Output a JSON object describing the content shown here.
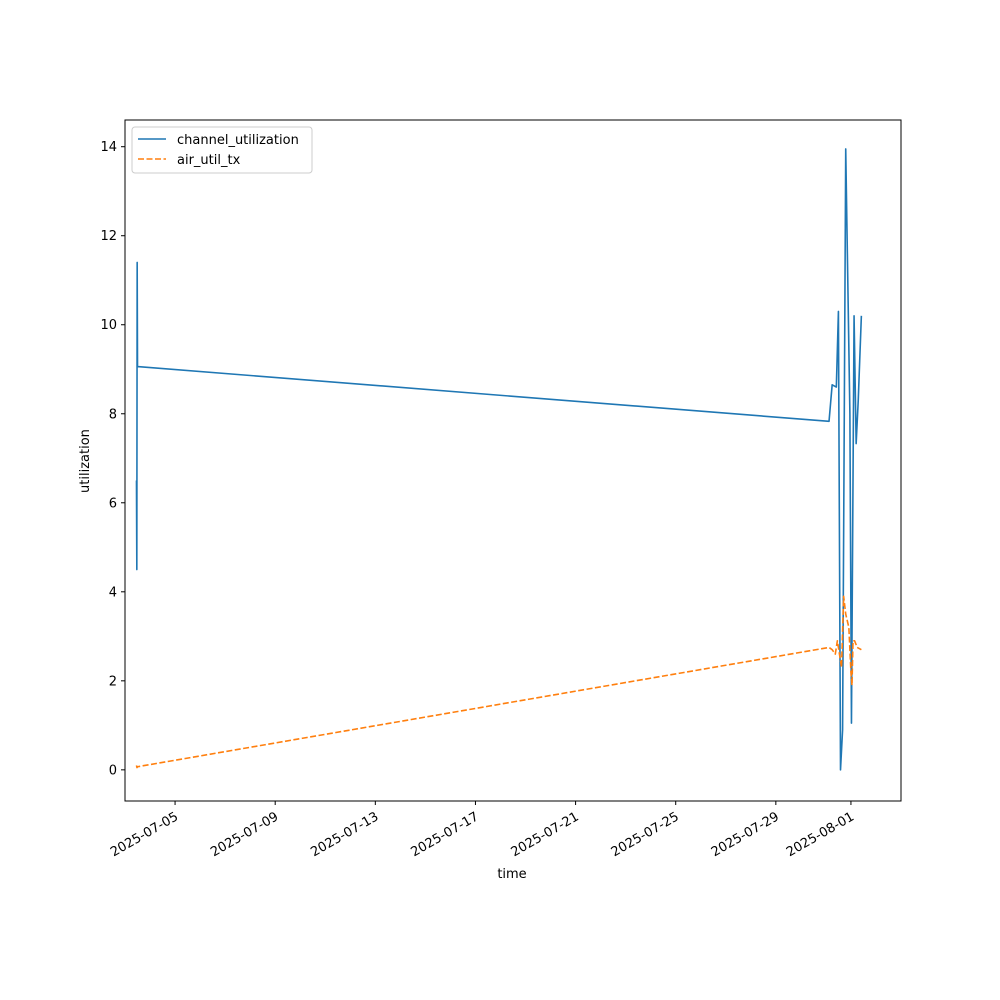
{
  "chart_data": {
    "type": "line",
    "title": "",
    "xlabel": "time",
    "ylabel": "utilization",
    "x_type": "date",
    "xlim": [
      "2025-07-03 00:00",
      "2025-08-03 00:00"
    ],
    "ylim": [
      -0.7,
      14.6
    ],
    "yticks": [
      0,
      2,
      4,
      6,
      8,
      10,
      12,
      14
    ],
    "xticks": [
      "2025-07-05",
      "2025-07-09",
      "2025-07-13",
      "2025-07-17",
      "2025-07-21",
      "2025-07-25",
      "2025-07-29",
      "2025-08-01"
    ],
    "grid": false,
    "legend": "top-left",
    "series": [
      {
        "name": "channel_utilization",
        "color": "#1f77b4",
        "style": "solid",
        "points": [
          [
            "2025-07-03 11:00",
            6.5
          ],
          [
            "2025-07-03 11:20",
            4.5
          ],
          [
            "2025-07-03 11:40",
            11.4
          ],
          [
            "2025-07-03 12:00",
            9.06
          ],
          [
            "2025-07-31 03:00",
            7.83
          ],
          [
            "2025-07-31 06:00",
            8.65
          ],
          [
            "2025-07-31 10:00",
            8.6
          ],
          [
            "2025-07-31 12:00",
            10.3
          ],
          [
            "2025-07-31 14:00",
            0.0
          ],
          [
            "2025-07-31 16:00",
            0.9
          ],
          [
            "2025-07-31 19:00",
            13.95
          ],
          [
            "2025-07-31 23:00",
            8.0
          ],
          [
            "2025-08-01 00:30",
            1.05
          ],
          [
            "2025-08-01 03:00",
            10.2
          ],
          [
            "2025-08-01 05:00",
            7.33
          ],
          [
            "2025-08-01 07:00",
            8.3
          ],
          [
            "2025-08-01 10:00",
            10.2
          ]
        ]
      },
      {
        "name": "air_util_tx",
        "color": "#ff7f0e",
        "style": "dashed",
        "points": [
          [
            "2025-07-03 11:00",
            0.1
          ],
          [
            "2025-07-03 11:30",
            0.05
          ],
          [
            "2025-07-03 12:00",
            0.07
          ],
          [
            "2025-07-31 03:00",
            2.75
          ],
          [
            "2025-07-31 06:00",
            2.7
          ],
          [
            "2025-07-31 09:00",
            2.6
          ],
          [
            "2025-07-31 11:00",
            2.9
          ],
          [
            "2025-07-31 13:00",
            2.6
          ],
          [
            "2025-07-31 15:00",
            2.3
          ],
          [
            "2025-07-31 17:00",
            3.9
          ],
          [
            "2025-07-31 19:00",
            3.5
          ],
          [
            "2025-07-31 22:00",
            3.2
          ],
          [
            "2025-08-01 00:00",
            2.2
          ],
          [
            "2025-08-01 01:00",
            1.9
          ],
          [
            "2025-08-01 02:00",
            2.9
          ],
          [
            "2025-08-01 03:30",
            2.9
          ],
          [
            "2025-08-01 06:00",
            2.75
          ],
          [
            "2025-08-01 10:00",
            2.7
          ]
        ]
      }
    ]
  }
}
